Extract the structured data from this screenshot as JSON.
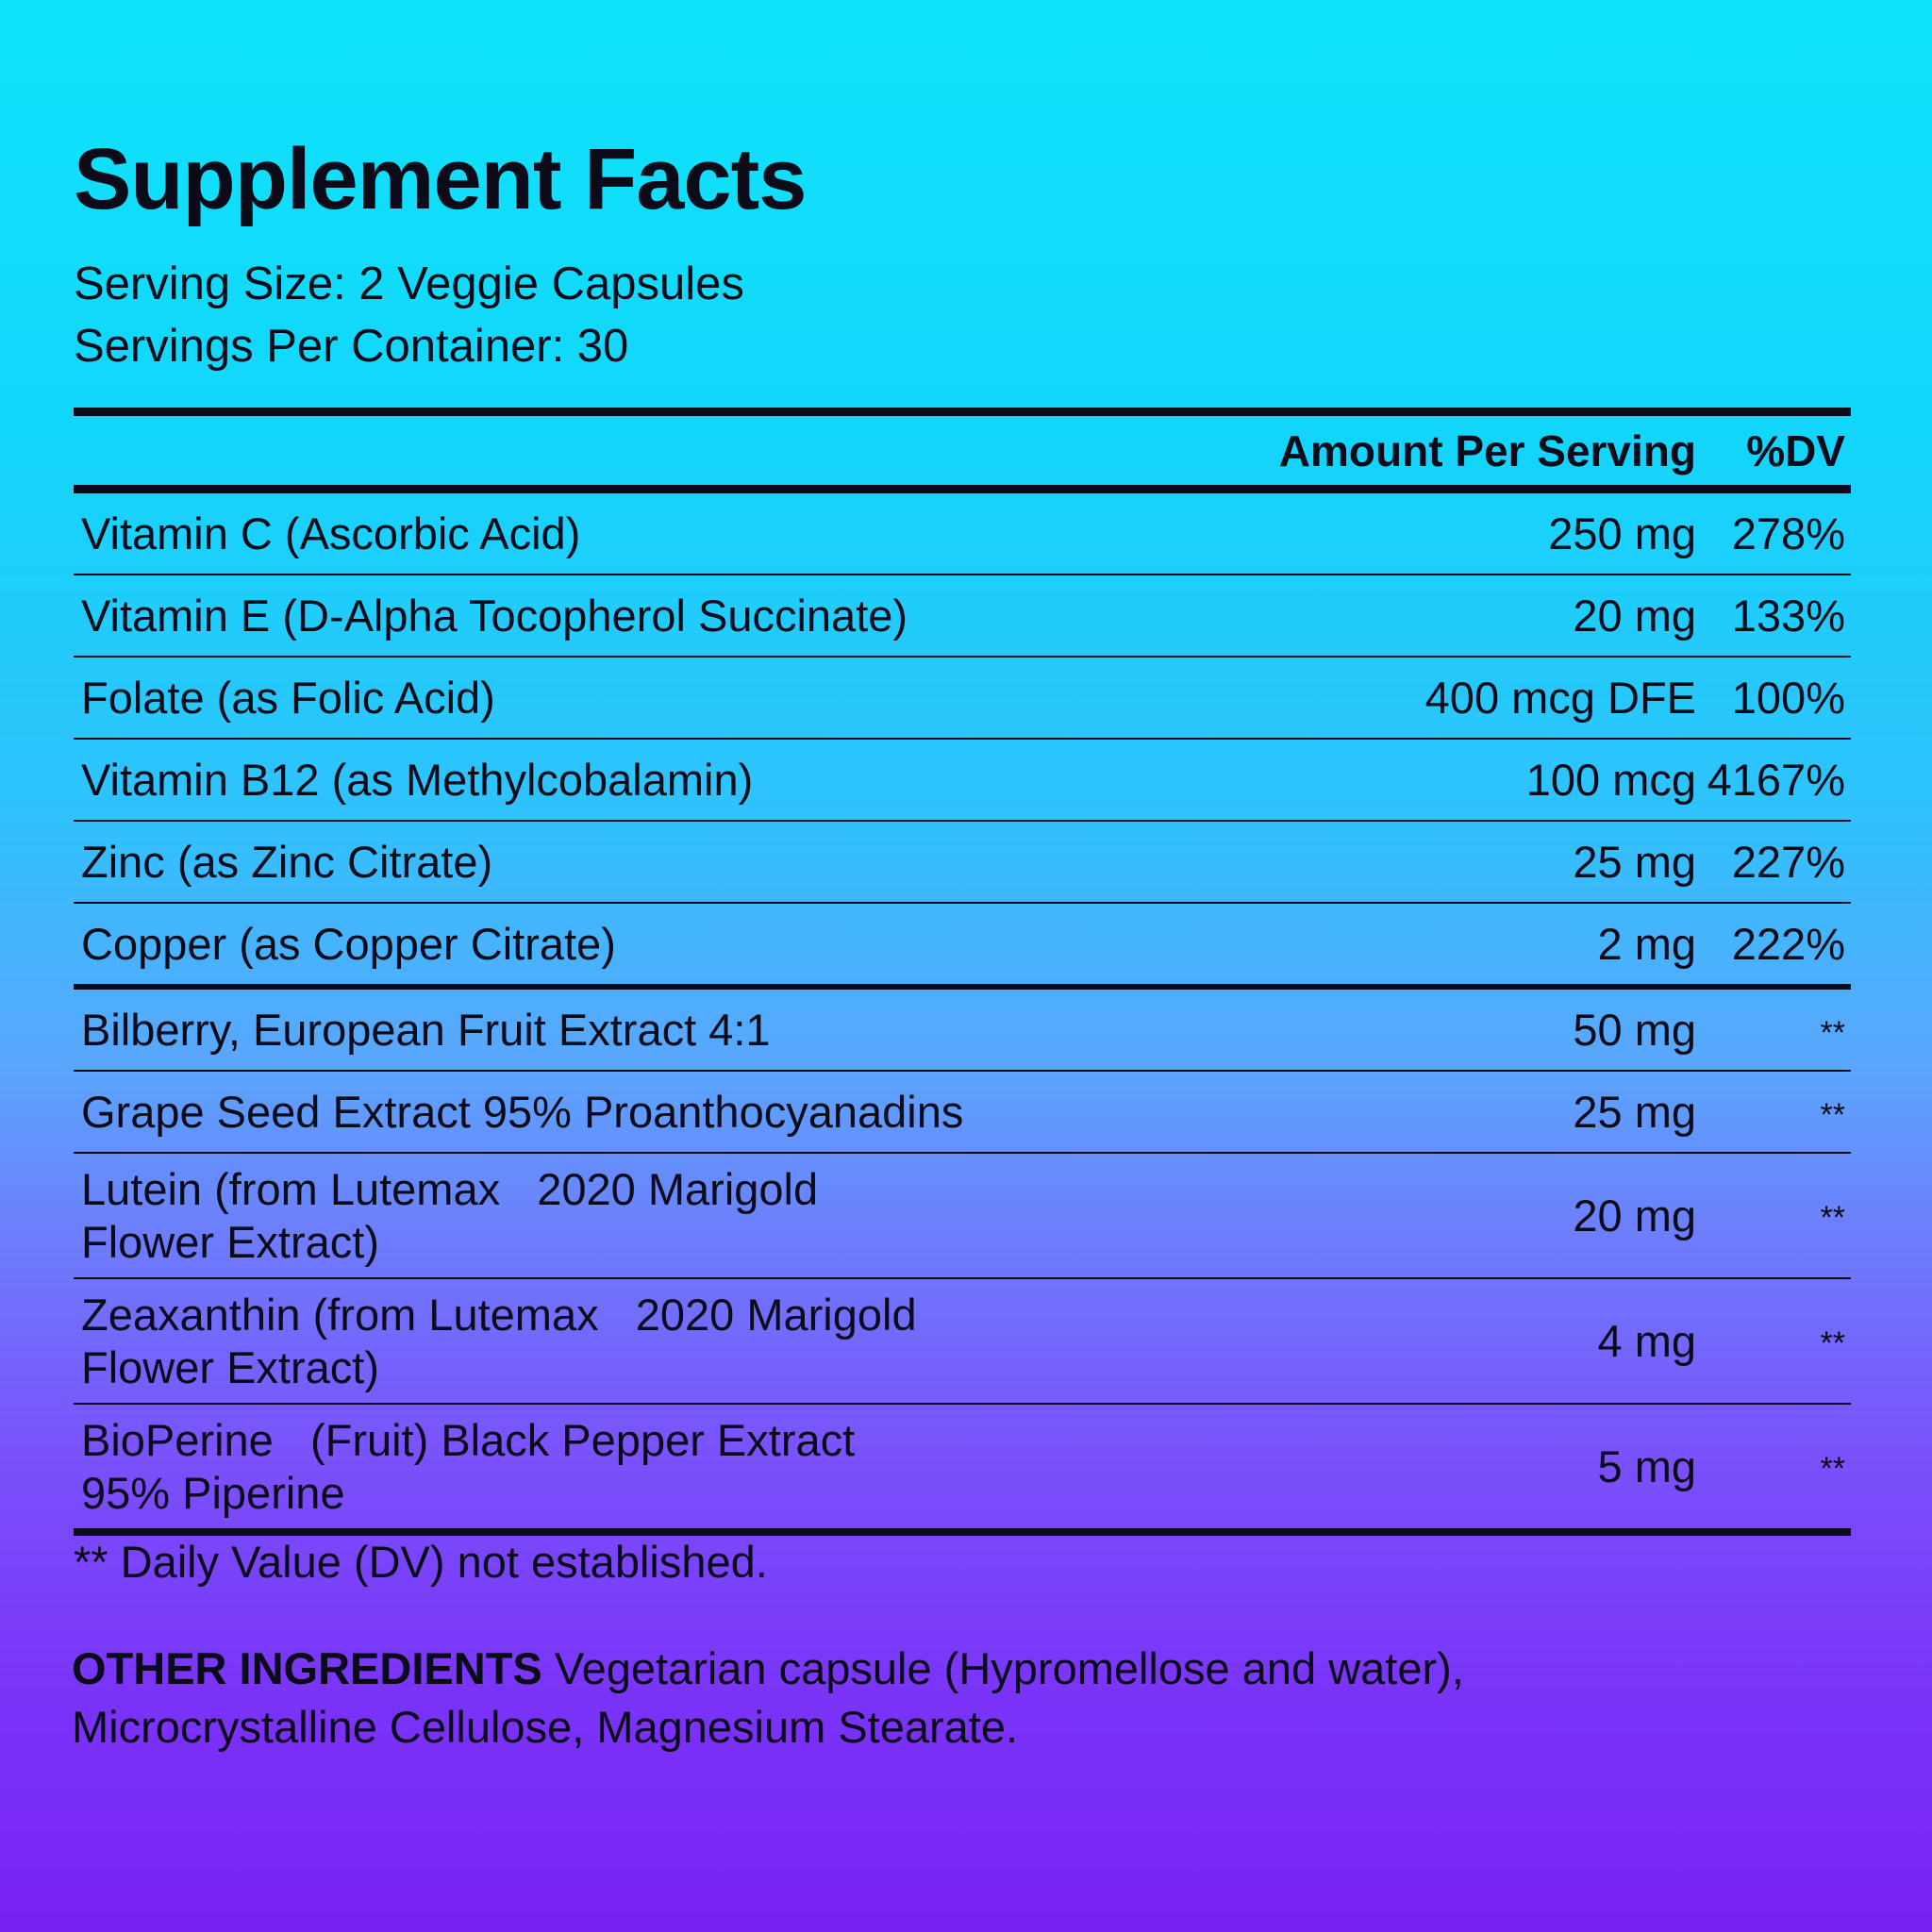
{
  "header": {
    "title": "Supplement Facts",
    "serving_size": "Serving Size: 2 Veggie Capsules",
    "servings_per_container": "Servings Per Container: 30"
  },
  "table": {
    "col_amount": "Amount Per Serving",
    "col_dv": "%DV",
    "rows": [
      {
        "name": "Vitamin C (Ascorbic Acid)",
        "amount": "250 mg",
        "dv": "278%"
      },
      {
        "name": "Vitamin E (D-Alpha Tocopherol Succinate)",
        "amount": "20 mg",
        "dv": "133%"
      },
      {
        "name": "Folate (as Folic Acid)",
        "amount": "400 mcg DFE",
        "dv": "100%"
      },
      {
        "name": "Vitamin B12 (as Methylcobalamin)",
        "amount": "100 mcg",
        "dv": "4167%"
      },
      {
        "name": "Zinc (as Zinc Citrate)",
        "amount": "25 mg",
        "dv": "227%"
      },
      {
        "name": "Copper (as Copper Citrate)",
        "amount": "2 mg",
        "dv": "222%"
      },
      {
        "name": "Bilberry, European Fruit Extract 4:1",
        "amount": "50 mg",
        "dv": "**"
      },
      {
        "name": "Grape Seed Extract 95% Proanthocyanadins",
        "amount": "25 mg",
        "dv": "**"
      },
      {
        "name_line1": "Lutein (from Lutemax   2020 Marigold",
        "name_line2": "Flower Extract)",
        "amount": "20 mg",
        "dv": "**"
      },
      {
        "name_line1": "Zeaxanthin (from Lutemax   2020 Marigold",
        "name_line2": "Flower Extract)",
        "amount": "4 mg",
        "dv": "**"
      },
      {
        "name_line1": "BioPerine   (Fruit) Black Pepper Extract",
        "name_line2": "95% Piperine",
        "amount": "5 mg",
        "dv": "**"
      }
    ]
  },
  "footnote": "** Daily Value (DV) not established.",
  "other_ingredients": {
    "label": "OTHER INGREDIENTS",
    "text": " Vegetarian capsule (Hypromellose and water), Microcrystalline Cellulose, Magnesium Stearate."
  },
  "colors": {
    "background_top": "#0fe4fb",
    "background_bottom": "#7822f4",
    "text": "#0b0b1a"
  }
}
